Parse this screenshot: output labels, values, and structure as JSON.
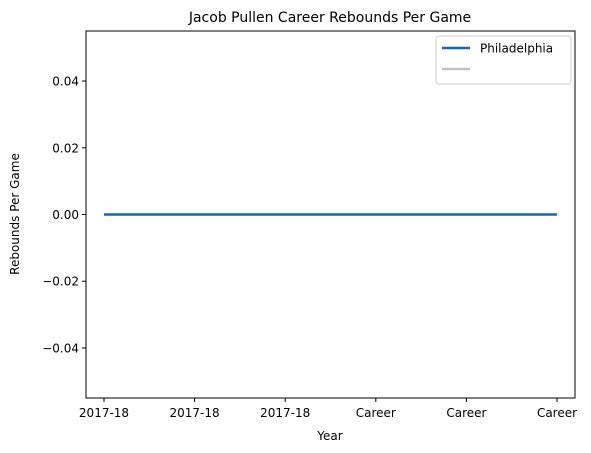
{
  "chart_data": {
    "type": "line",
    "title": "Jacob Pullen Career Rebounds Per Game",
    "xlabel": "Year",
    "ylabel": "Rebounds Per Game",
    "categories": [
      "2017-18",
      "2017-18",
      "2017-18",
      "Career",
      "Career",
      "Career"
    ],
    "series": [
      {
        "name": "Philadelphia",
        "values": [
          0,
          0,
          0,
          0,
          0,
          0
        ],
        "color": "#1565c0"
      }
    ],
    "legend_extra_color": "#c0c0c0",
    "ylim": [
      -0.055,
      0.055
    ],
    "yticks": [
      -0.04,
      -0.02,
      0.0,
      0.02,
      0.04
    ],
    "ytick_labels": [
      "−0.04",
      "−0.02",
      "0.00",
      "0.02",
      "0.04"
    ],
    "grid": false,
    "legend_position": "top-right"
  }
}
